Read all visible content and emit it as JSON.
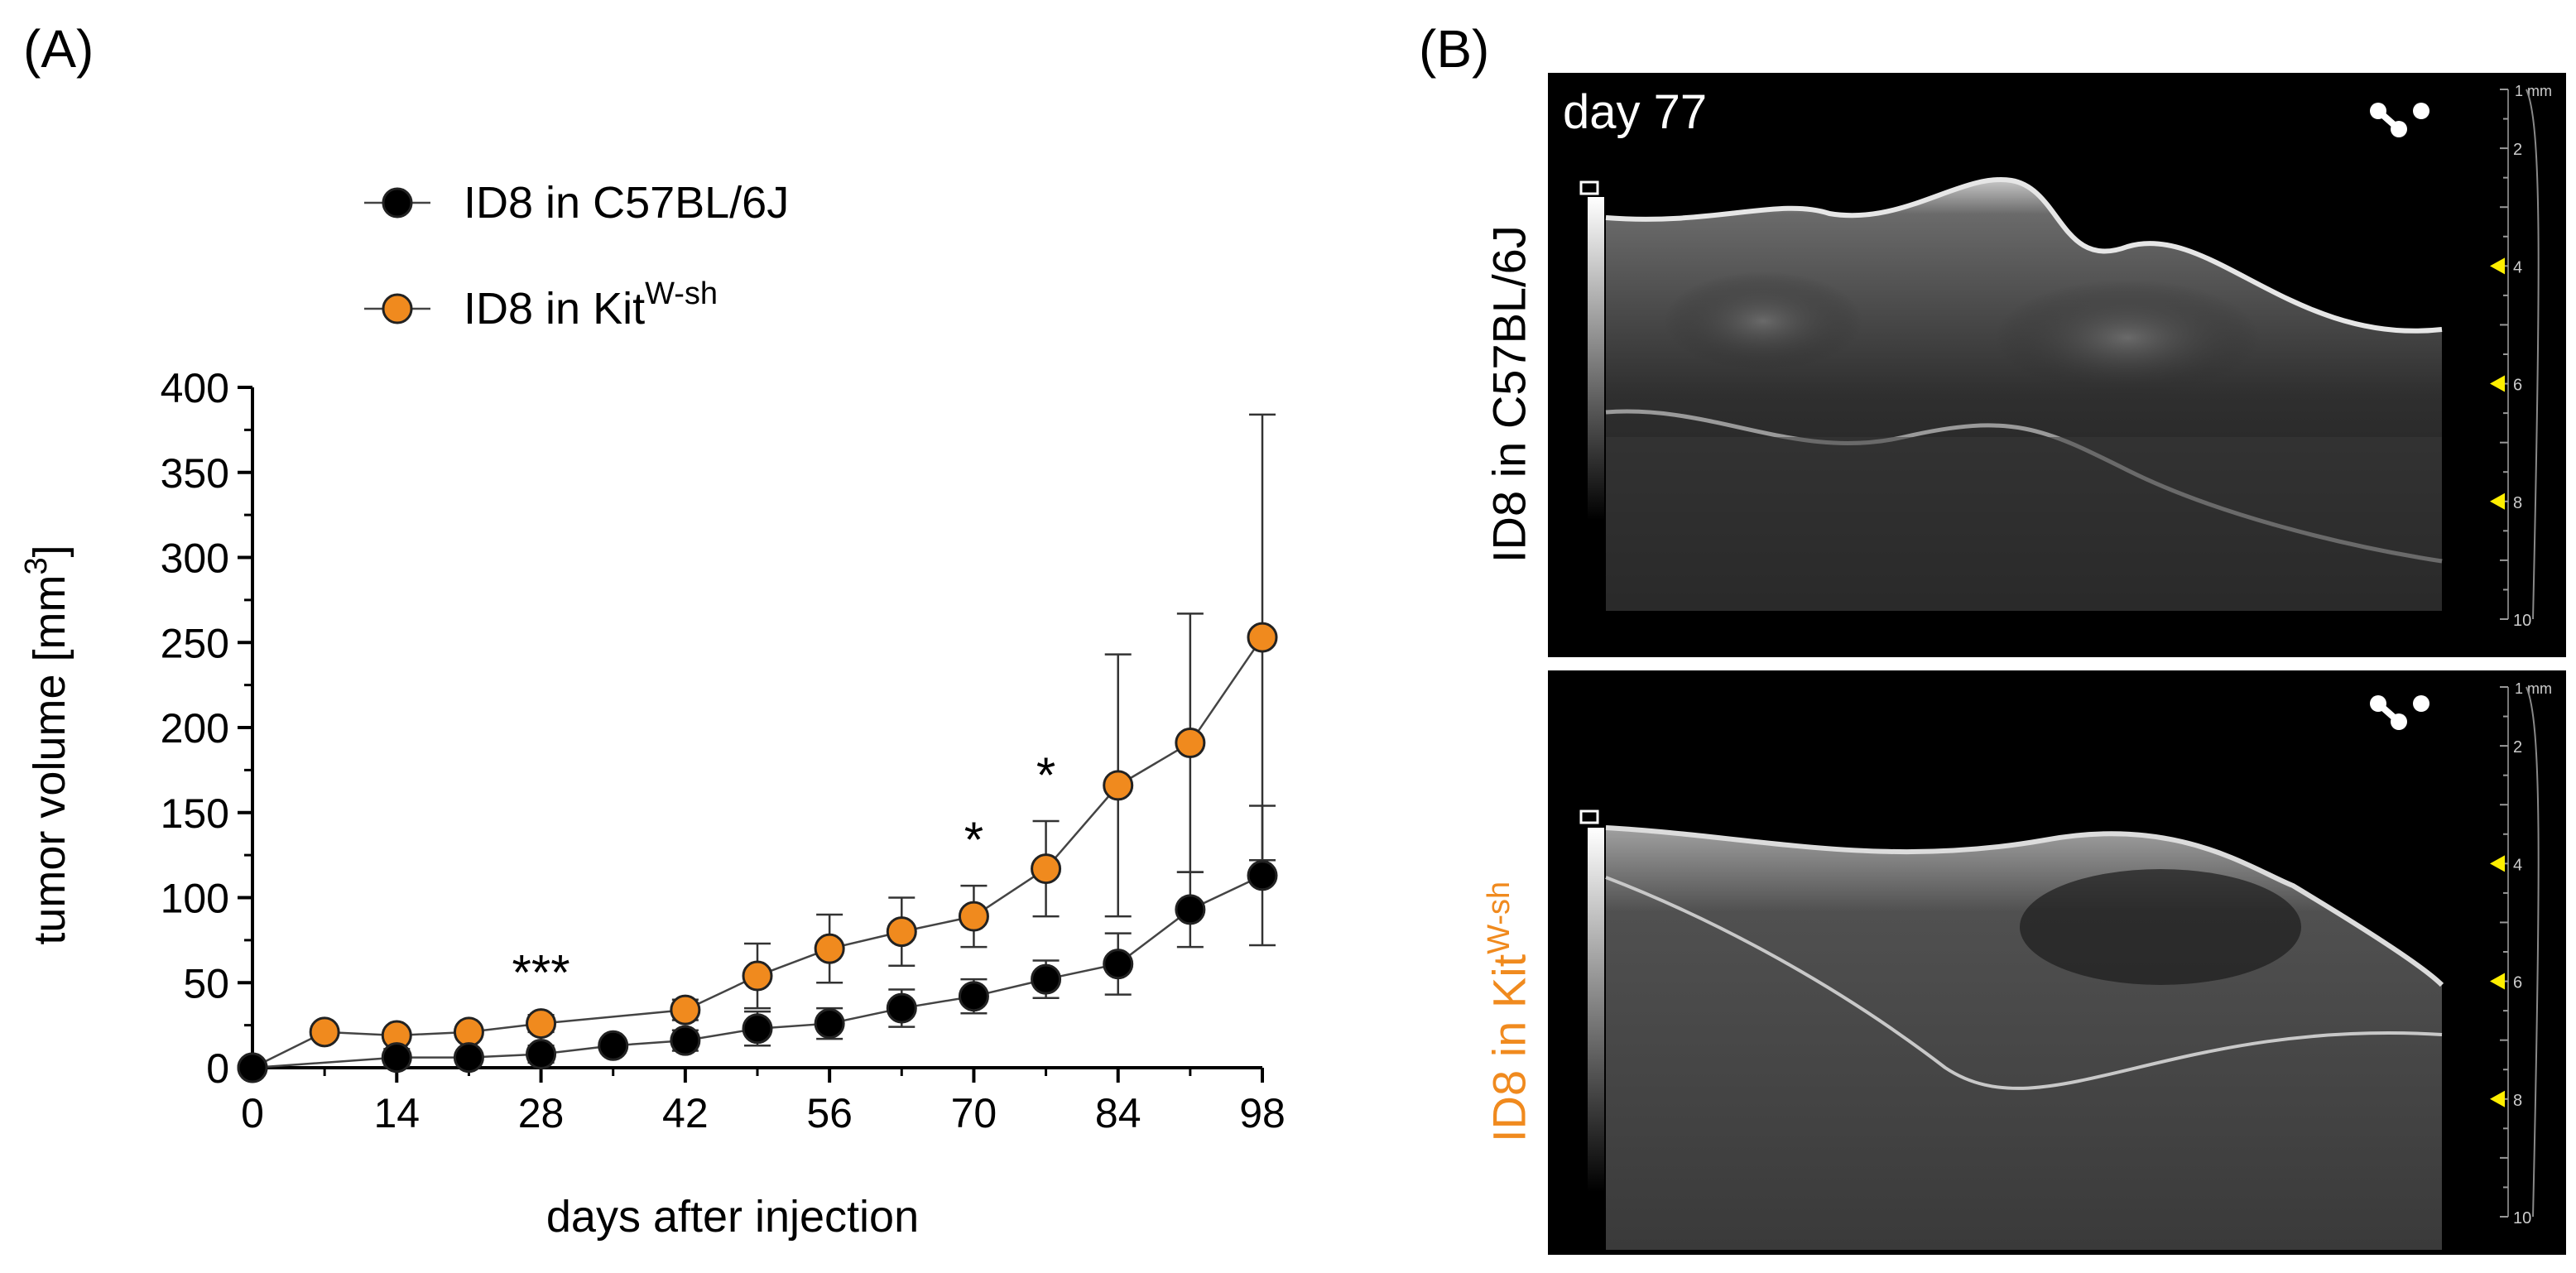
{
  "panel_a_label": "(A)",
  "panel_b_label": "(B)",
  "chart_data": {
    "type": "line",
    "title": "",
    "xlabel": "days after injection",
    "ylabel_main": "tumor volume [mm",
    "ylabel_sup": "3",
    "ylabel_end": "]",
    "xlim": [
      0,
      98
    ],
    "ylim": [
      0,
      400
    ],
    "xticks": [
      0,
      14,
      28,
      42,
      56,
      70,
      84,
      98
    ],
    "yticks": [
      0,
      50,
      100,
      150,
      200,
      250,
      300,
      350,
      400
    ],
    "grid": false,
    "legend_position": "top-left",
    "series": [
      {
        "name": "ID8 in C57BL/6J",
        "name_main": "ID8 in C57BL/6J",
        "name_sup": "",
        "marker_color": "#000000",
        "x": [
          0,
          14,
          21,
          28,
          35,
          42,
          49,
          56,
          63,
          70,
          77,
          84,
          91,
          98
        ],
        "y": [
          0,
          6,
          6,
          8,
          13,
          16,
          23,
          26,
          35,
          42,
          52,
          61,
          93,
          113
        ],
        "err": [
          0,
          5,
          4,
          5,
          4,
          6,
          10,
          9,
          11,
          10,
          11,
          18,
          22,
          41
        ]
      },
      {
        "name": "ID8 in KitW-sh",
        "name_main": "ID8 in Kit",
        "name_sup": "W-sh",
        "marker_color": "#F08A1E",
        "x": [
          0,
          7,
          14,
          21,
          28,
          42,
          49,
          56,
          63,
          70,
          77,
          84,
          91,
          98
        ],
        "y": [
          0,
          21,
          19,
          21,
          26,
          34,
          54,
          70,
          80,
          89,
          117,
          166,
          191,
          253
        ],
        "err": [
          0,
          3,
          3,
          4,
          5,
          6,
          19,
          20,
          20,
          18,
          28,
          77,
          76,
          131
        ]
      }
    ],
    "annotations": [
      {
        "text": "***",
        "x": 28,
        "y": 50
      },
      {
        "text": "*",
        "x": 70,
        "y": 128
      },
      {
        "text": "*",
        "x": 77,
        "y": 166
      }
    ]
  },
  "ultrasound": {
    "top": {
      "row_label": "ID8 in C57BL/6J",
      "row_label_sup": "",
      "row_label_color": "#000000",
      "day_label": "day 77",
      "depth_unit": "1 mm",
      "depth_ticks": [
        "2",
        "4",
        "6",
        "8",
        "10"
      ],
      "markers": [
        "4",
        "6",
        "8"
      ]
    },
    "bottom": {
      "row_label": "ID8 in Kit",
      "row_label_sup": "W-sh",
      "row_label_color": "#F08A1E",
      "day_label": "",
      "depth_unit": "1 mm",
      "depth_ticks": [
        "2",
        "4",
        "6",
        "8",
        "10"
      ],
      "markers": [
        "4",
        "6",
        "8"
      ]
    }
  }
}
